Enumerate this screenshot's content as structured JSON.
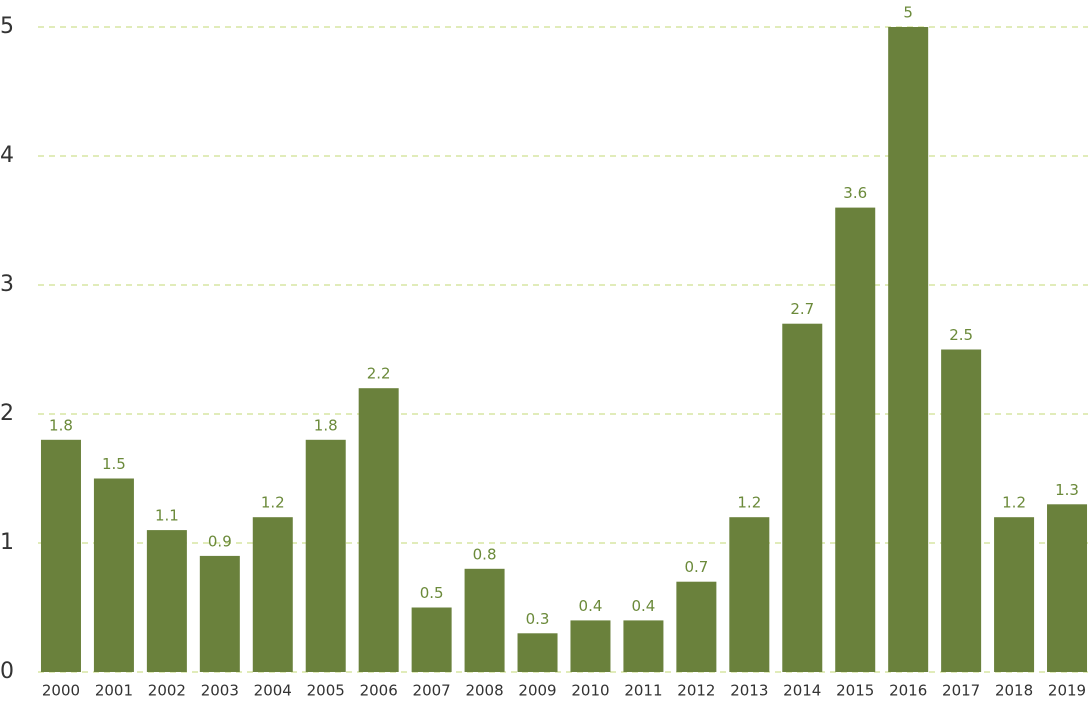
{
  "chart_data": {
    "type": "bar",
    "categories": [
      "2000",
      "2001",
      "2002",
      "2003",
      "2004",
      "2005",
      "2006",
      "2007",
      "2008",
      "2009",
      "2010",
      "2011",
      "2012",
      "2013",
      "2014",
      "2015",
      "2016",
      "2017",
      "2018",
      "2019"
    ],
    "values": [
      1.8,
      1.5,
      1.1,
      0.9,
      1.2,
      1.8,
      2.2,
      0.5,
      0.8,
      0.3,
      0.4,
      0.4,
      0.7,
      1.2,
      2.7,
      3.6,
      5,
      2.5,
      1.2,
      1.3
    ],
    "color": "#6a813c",
    "ylim": [
      0,
      5
    ],
    "yticks": [
      0,
      1,
      2,
      3,
      4,
      5
    ],
    "grid": true
  }
}
